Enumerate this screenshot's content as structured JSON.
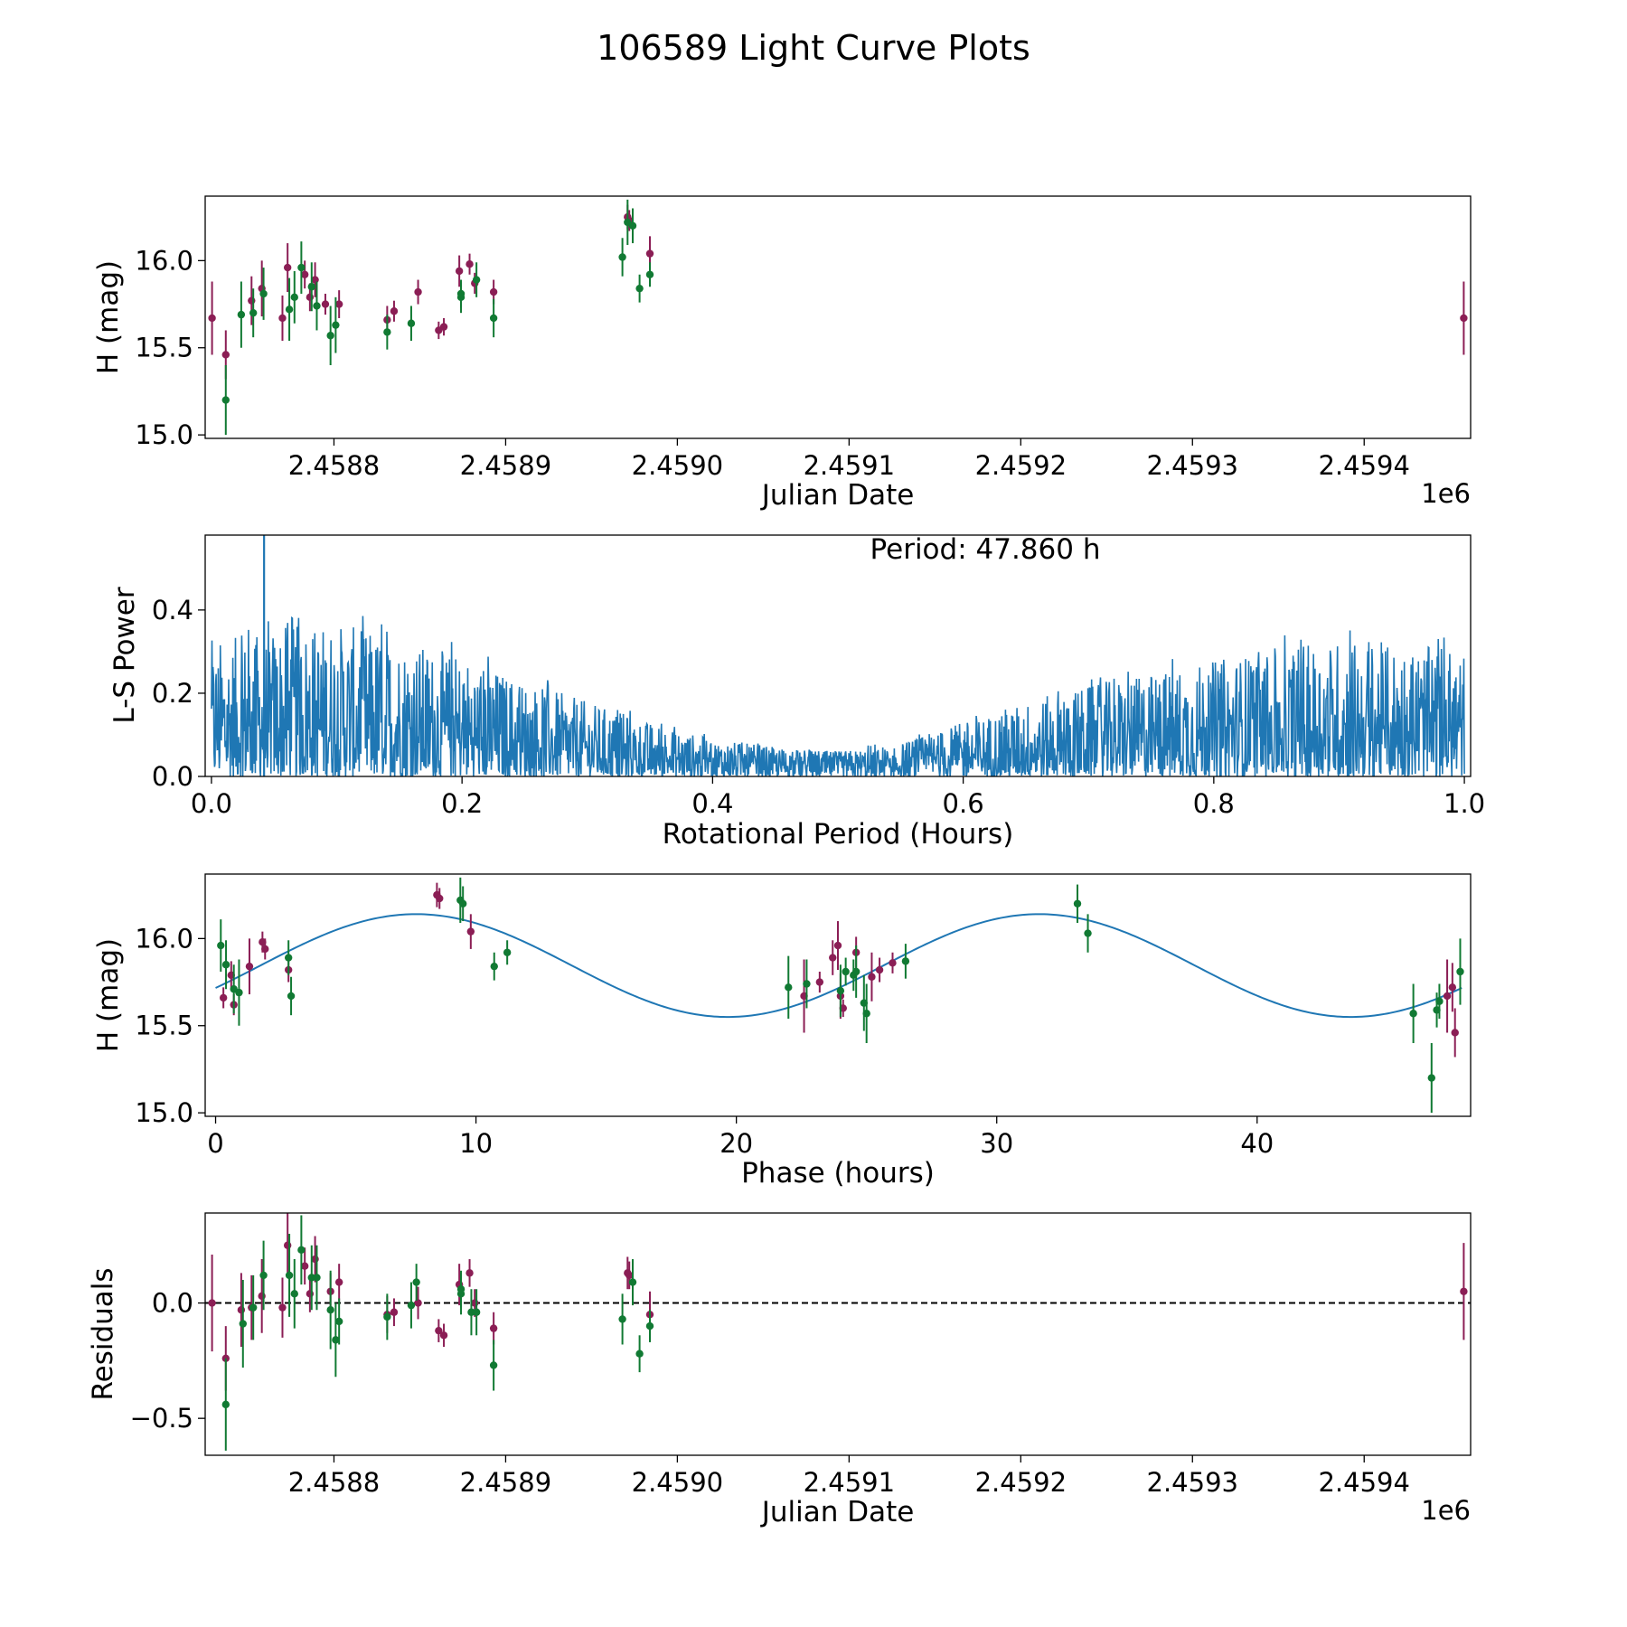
{
  "title": "106589 Light Curve Plots",
  "colors": {
    "series_a": "#8b1e55",
    "series_b": "#117a33",
    "curve": "#1f77b4",
    "zero_line": "#000000"
  },
  "chart_data": [
    {
      "id": "light_curve",
      "type": "scatter",
      "xlabel": "Julian Date",
      "ylabel": "H (mag)",
      "offset_label": "1e6",
      "x_offset": 1000000,
      "xlim": [
        2.458725,
        2.459462
      ],
      "ylim": [
        14.98,
        16.37
      ],
      "xticks": [
        2.4588,
        2.4589,
        2.459,
        2.4591,
        2.4592,
        2.4593,
        2.4594
      ],
      "xtick_labels": [
        "2.4588",
        "2.4589",
        "2.4590",
        "2.4591",
        "2.4592",
        "2.4593",
        "2.4594"
      ],
      "yticks": [
        15.0,
        15.5,
        16.0
      ],
      "ytick_labels": [
        "15.0",
        "15.5",
        "16.0"
      ],
      "series": [
        {
          "name": "A",
          "color": "#8b1e55",
          "points": [
            [
              2.458729,
              15.67,
              0.21
            ],
            [
              2.458737,
              15.46,
              0.14
            ],
            [
              2.458752,
              15.77,
              0.14
            ],
            [
              2.458758,
              15.84,
              0.16
            ],
            [
              2.45877,
              15.67,
              0.13
            ],
            [
              2.458773,
              15.96,
              0.14
            ],
            [
              2.458783,
              15.92,
              0.08
            ],
            [
              2.458786,
              15.79,
              0.08
            ],
            [
              2.458789,
              15.89,
              0.1
            ],
            [
              2.458795,
              15.75,
              0.06
            ],
            [
              2.458803,
              15.75,
              0.08
            ],
            [
              2.458831,
              15.66,
              0.08
            ],
            [
              2.458835,
              15.71,
              0.06
            ],
            [
              2.458849,
              15.82,
              0.07
            ],
            [
              2.458861,
              15.6,
              0.05
            ],
            [
              2.458864,
              15.62,
              0.05
            ],
            [
              2.458873,
              15.94,
              0.09
            ],
            [
              2.458879,
              15.98,
              0.06
            ],
            [
              2.458882,
              15.87,
              0.06
            ],
            [
              2.458893,
              15.82,
              0.07
            ],
            [
              2.458971,
              16.25,
              0.07
            ],
            [
              2.458972,
              16.23,
              0.06
            ],
            [
              2.458984,
              16.04,
              0.1
            ],
            [
              2.459458,
              15.67,
              0.21
            ]
          ]
        },
        {
          "name": "B",
          "color": "#117a33",
          "points": [
            [
              2.458737,
              15.2,
              0.2
            ],
            [
              2.458746,
              15.69,
              0.19
            ],
            [
              2.458753,
              15.7,
              0.14
            ],
            [
              2.458759,
              15.81,
              0.15
            ],
            [
              2.458774,
              15.72,
              0.18
            ],
            [
              2.458777,
              15.79,
              0.15
            ],
            [
              2.458781,
              15.96,
              0.15
            ],
            [
              2.458787,
              15.85,
              0.14
            ],
            [
              2.45879,
              15.74,
              0.14
            ],
            [
              2.458798,
              15.57,
              0.17
            ],
            [
              2.458801,
              15.63,
              0.16
            ],
            [
              2.458831,
              15.59,
              0.1
            ],
            [
              2.458845,
              15.64,
              0.1
            ],
            [
              2.458874,
              15.79,
              0.09
            ],
            [
              2.458874,
              15.81,
              0.08
            ],
            [
              2.458883,
              15.89,
              0.1
            ],
            [
              2.458893,
              15.67,
              0.11
            ],
            [
              2.458968,
              16.02,
              0.11
            ],
            [
              2.458971,
              16.22,
              0.13
            ],
            [
              2.458974,
              16.2,
              0.1
            ],
            [
              2.458978,
              15.84,
              0.08
            ],
            [
              2.458984,
              15.92,
              0.07
            ]
          ]
        }
      ]
    },
    {
      "id": "periodogram",
      "type": "line",
      "xlabel": "Rotational Period (Hours)",
      "ylabel": "L-S Power",
      "annotation": "Period: 47.860 h",
      "xlim": [
        -0.005,
        1.005
      ],
      "ylim": [
        0,
        0.58
      ],
      "xticks": [
        0.0,
        0.2,
        0.4,
        0.6,
        0.8,
        1.0
      ],
      "xtick_labels": [
        "0.0",
        "0.2",
        "0.4",
        "0.6",
        "0.8",
        "1.0"
      ],
      "yticks": [
        0.0,
        0.2,
        0.4
      ],
      "ytick_labels": [
        "0.0",
        "0.2",
        "0.4"
      ],
      "peak": [
        0.042,
        0.58
      ],
      "envelope": [
        [
          0.0,
          0.32
        ],
        [
          0.05,
          0.36
        ],
        [
          0.1,
          0.37
        ],
        [
          0.15,
          0.33
        ],
        [
          0.2,
          0.29
        ],
        [
          0.25,
          0.23
        ],
        [
          0.3,
          0.18
        ],
        [
          0.35,
          0.13
        ],
        [
          0.4,
          0.09
        ],
        [
          0.45,
          0.07
        ],
        [
          0.5,
          0.06
        ],
        [
          0.55,
          0.08
        ],
        [
          0.6,
          0.13
        ],
        [
          0.65,
          0.18
        ],
        [
          0.7,
          0.22
        ],
        [
          0.75,
          0.25
        ],
        [
          0.8,
          0.28
        ],
        [
          0.85,
          0.31
        ],
        [
          0.9,
          0.33
        ],
        [
          0.95,
          0.32
        ],
        [
          1.0,
          0.3
        ]
      ]
    },
    {
      "id": "phase_fold",
      "type": "scatter",
      "xlabel": "Phase (hours)",
      "ylabel": "H (mag)",
      "xlim": [
        -0.4,
        48.2
      ],
      "ylim": [
        14.98,
        16.37
      ],
      "xticks": [
        0,
        10,
        20,
        30,
        40
      ],
      "xtick_labels": [
        "0",
        "10",
        "20",
        "30",
        "40"
      ],
      "yticks": [
        15.0,
        15.5,
        16.0
      ],
      "ytick_labels": [
        "15.0",
        "15.5",
        "16.0"
      ],
      "model": {
        "mean": 15.845,
        "amplitude": 0.295,
        "period": 23.93,
        "peak_phase": 7.7,
        "x_range": [
          0,
          47.86
        ]
      },
      "series": [
        {
          "name": "A",
          "color": "#8b1e55",
          "points": [
            [
              0.3,
              15.66,
              0.06
            ],
            [
              0.6,
              15.79,
              0.08
            ],
            [
              0.7,
              15.62,
              0.06
            ],
            [
              1.3,
              15.84,
              0.16
            ],
            [
              1.8,
              15.98,
              0.06
            ],
            [
              1.9,
              15.94,
              0.06
            ],
            [
              2.8,
              15.82,
              0.07
            ],
            [
              8.5,
              16.25,
              0.07
            ],
            [
              8.6,
              16.23,
              0.06
            ],
            [
              9.8,
              16.04,
              0.1
            ],
            [
              22.6,
              15.67,
              0.21
            ],
            [
              23.2,
              15.75,
              0.06
            ],
            [
              23.7,
              15.89,
              0.1
            ],
            [
              23.9,
              15.96,
              0.14
            ],
            [
              24.0,
              15.67,
              0.13
            ],
            [
              24.1,
              15.6,
              0.05
            ],
            [
              24.6,
              15.92,
              0.09
            ],
            [
              25.2,
              15.78,
              0.14
            ],
            [
              25.5,
              15.82,
              0.07
            ],
            [
              26.0,
              15.86,
              0.06
            ],
            [
              47.3,
              15.67,
              0.21
            ],
            [
              47.5,
              15.72,
              0.14
            ],
            [
              47.6,
              15.46,
              0.14
            ]
          ]
        },
        {
          "name": "B",
          "color": "#117a33",
          "points": [
            [
              0.2,
              15.96,
              0.15
            ],
            [
              0.4,
              15.85,
              0.14
            ],
            [
              0.7,
              15.71,
              0.14
            ],
            [
              0.9,
              15.69,
              0.19
            ],
            [
              2.8,
              15.89,
              0.1
            ],
            [
              2.9,
              15.67,
              0.11
            ],
            [
              9.4,
              16.22,
              0.13
            ],
            [
              9.5,
              16.2,
              0.1
            ],
            [
              10.7,
              15.84,
              0.08
            ],
            [
              11.2,
              15.92,
              0.07
            ],
            [
              22.0,
              15.72,
              0.18
            ],
            [
              22.7,
              15.74,
              0.14
            ],
            [
              24.0,
              15.7,
              0.15
            ],
            [
              24.2,
              15.81,
              0.08
            ],
            [
              24.5,
              15.79,
              0.09
            ],
            [
              24.6,
              15.81,
              0.15
            ],
            [
              24.9,
              15.63,
              0.16
            ],
            [
              25.0,
              15.57,
              0.17
            ],
            [
              26.5,
              15.87,
              0.1
            ],
            [
              33.1,
              16.2,
              0.11
            ],
            [
              33.5,
              16.03,
              0.11
            ],
            [
              46.0,
              15.57,
              0.17
            ],
            [
              46.7,
              15.2,
              0.2
            ],
            [
              46.9,
              15.59,
              0.1
            ],
            [
              47.0,
              15.64,
              0.1
            ],
            [
              47.8,
              15.81,
              0.19
            ]
          ]
        }
      ]
    },
    {
      "id": "residuals",
      "type": "scatter",
      "xlabel": "Julian Date",
      "ylabel": "Residuals",
      "offset_label": "1e6",
      "x_offset": 1000000,
      "xlim": [
        2.458725,
        2.459462
      ],
      "ylim": [
        -0.66,
        0.39
      ],
      "xticks": [
        2.4588,
        2.4589,
        2.459,
        2.4591,
        2.4592,
        2.4593,
        2.4594
      ],
      "xtick_labels": [
        "2.4588",
        "2.4589",
        "2.4590",
        "2.4591",
        "2.4592",
        "2.4593",
        "2.4594"
      ],
      "yticks": [
        -0.5,
        0.0
      ],
      "ytick_labels": [
        "−0.5",
        "0.0"
      ],
      "zero_line": 0,
      "series": [
        {
          "name": "A",
          "color": "#8b1e55",
          "points": [
            [
              2.458729,
              0.0,
              0.21
            ],
            [
              2.458737,
              -0.24,
              0.14
            ],
            [
              2.458746,
              -0.03,
              0.16
            ],
            [
              2.458752,
              -0.02,
              0.14
            ],
            [
              2.458758,
              0.03,
              0.16
            ],
            [
              2.45877,
              -0.02,
              0.13
            ],
            [
              2.458773,
              0.25,
              0.14
            ],
            [
              2.458783,
              0.16,
              0.08
            ],
            [
              2.458786,
              0.04,
              0.08
            ],
            [
              2.458789,
              0.19,
              0.1
            ],
            [
              2.458798,
              0.05,
              0.08
            ],
            [
              2.458803,
              0.09,
              0.08
            ],
            [
              2.458831,
              -0.05,
              0.08
            ],
            [
              2.458835,
              -0.04,
              0.06
            ],
            [
              2.458849,
              0.0,
              0.07
            ],
            [
              2.458861,
              -0.12,
              0.05
            ],
            [
              2.458864,
              -0.14,
              0.05
            ],
            [
              2.458873,
              0.08,
              0.09
            ],
            [
              2.458879,
              0.13,
              0.06
            ],
            [
              2.458882,
              0.0,
              0.06
            ],
            [
              2.458893,
              -0.11,
              0.07
            ],
            [
              2.458971,
              0.13,
              0.07
            ],
            [
              2.458972,
              0.12,
              0.06
            ],
            [
              2.458984,
              -0.05,
              0.1
            ],
            [
              2.459458,
              0.05,
              0.21
            ]
          ]
        },
        {
          "name": "B",
          "color": "#117a33",
          "points": [
            [
              2.458737,
              -0.44,
              0.2
            ],
            [
              2.458747,
              -0.09,
              0.19
            ],
            [
              2.458753,
              -0.02,
              0.14
            ],
            [
              2.458759,
              0.12,
              0.15
            ],
            [
              2.458774,
              0.12,
              0.18
            ],
            [
              2.458777,
              0.04,
              0.15
            ],
            [
              2.458781,
              0.23,
              0.15
            ],
            [
              2.458787,
              0.11,
              0.14
            ],
            [
              2.45879,
              0.11,
              0.14
            ],
            [
              2.458798,
              -0.03,
              0.17
            ],
            [
              2.458801,
              -0.16,
              0.16
            ],
            [
              2.458803,
              -0.08,
              0.1
            ],
            [
              2.458831,
              -0.06,
              0.1
            ],
            [
              2.458845,
              -0.01,
              0.1
            ],
            [
              2.458848,
              0.09,
              0.08
            ],
            [
              2.458874,
              0.04,
              0.09
            ],
            [
              2.458874,
              0.06,
              0.08
            ],
            [
              2.45888,
              -0.04,
              0.1
            ],
            [
              2.458883,
              -0.04,
              0.1
            ],
            [
              2.458893,
              -0.27,
              0.11
            ],
            [
              2.458968,
              -0.07,
              0.11
            ],
            [
              2.458974,
              0.09,
              0.1
            ],
            [
              2.458978,
              -0.22,
              0.08
            ],
            [
              2.458984,
              -0.1,
              0.07
            ]
          ]
        }
      ]
    }
  ]
}
